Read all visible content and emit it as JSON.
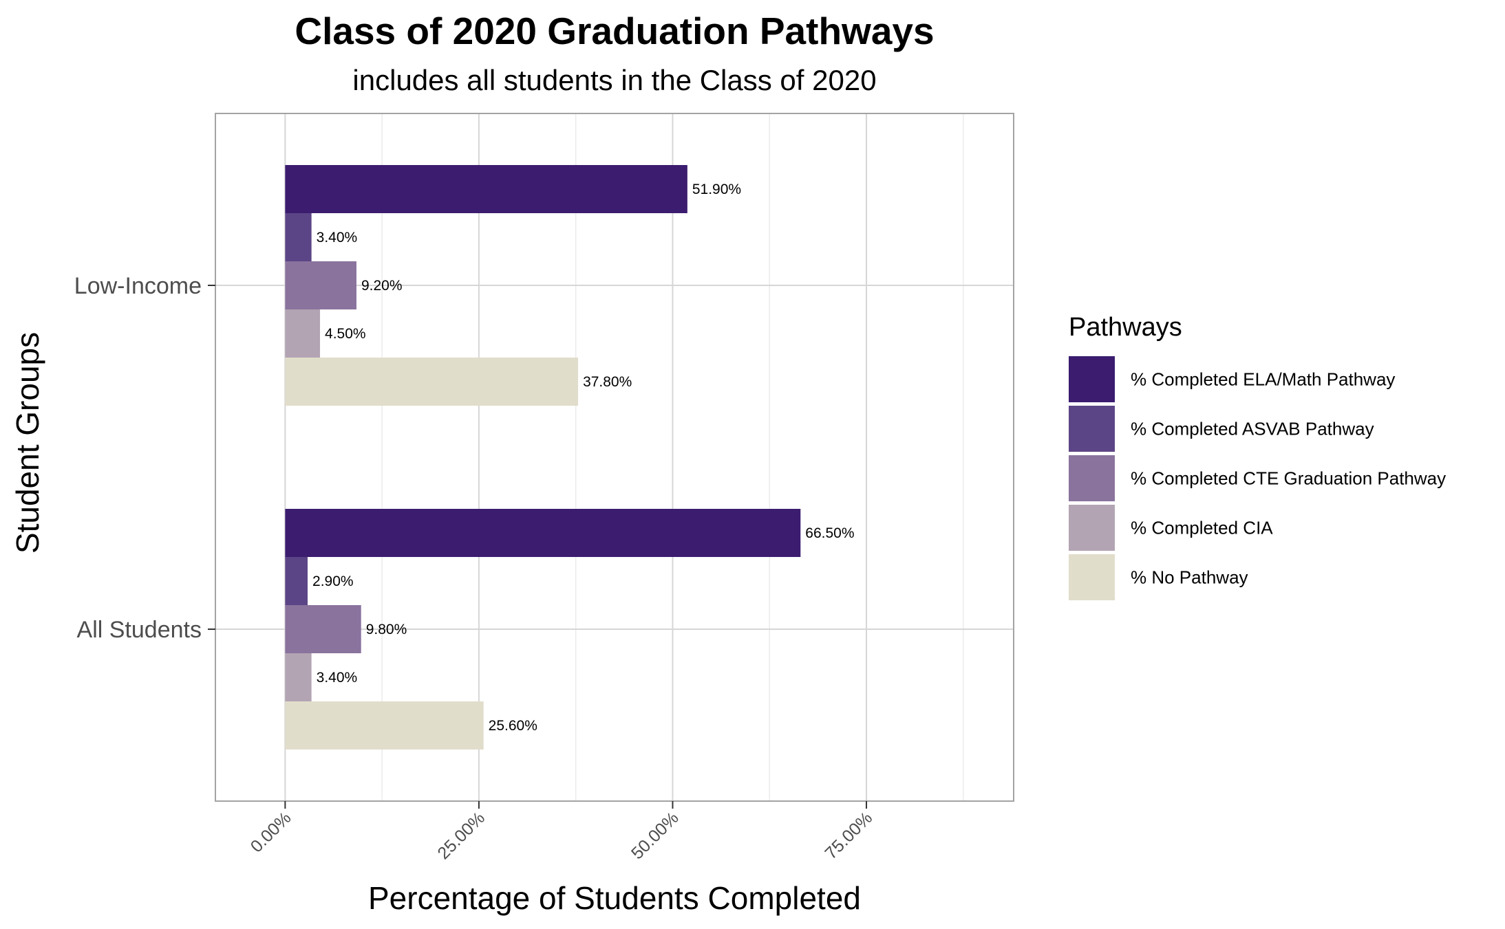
{
  "chart_data": {
    "type": "bar",
    "orientation": "horizontal",
    "title": "Class of 2020 Graduation Pathways",
    "subtitle": "includes all students in the Class of 2020",
    "xlabel": "Percentage of Students Completed",
    "ylabel": "Student Groups",
    "xlim": [
      -9,
      94
    ],
    "x_ticks": [
      0,
      25,
      50,
      75
    ],
    "x_tick_labels": [
      "0.00%",
      "25.00%",
      "50.00%",
      "75.00%"
    ],
    "grid": true,
    "categories": [
      "Low-Income",
      "All Students"
    ],
    "legend": {
      "title": "Pathways",
      "placement": "right"
    },
    "series": [
      {
        "name": "% Completed ELA/Math Pathway",
        "color": "#3b1c6f",
        "values": [
          51.9,
          66.5
        ],
        "labels": [
          "51.90%",
          "66.50%"
        ]
      },
      {
        "name": "% Completed ASVAB Pathway",
        "color": "#5c4586",
        "values": [
          3.4,
          2.9
        ],
        "labels": [
          "3.40%",
          "2.90%"
        ]
      },
      {
        "name": "% Completed CTE Graduation Pathway",
        "color": "#8a739d",
        "values": [
          9.2,
          9.8
        ],
        "labels": [
          "9.20%",
          "9.80%"
        ]
      },
      {
        "name": "% Completed CIA",
        "color": "#b3a4b3",
        "values": [
          4.5,
          3.4
        ],
        "labels": [
          "4.50%",
          "3.40%"
        ]
      },
      {
        "name": "% No Pathway",
        "color": "#e1ddcb",
        "values": [
          37.8,
          25.6
        ],
        "labels": [
          "37.80%",
          "25.60%"
        ]
      }
    ]
  }
}
